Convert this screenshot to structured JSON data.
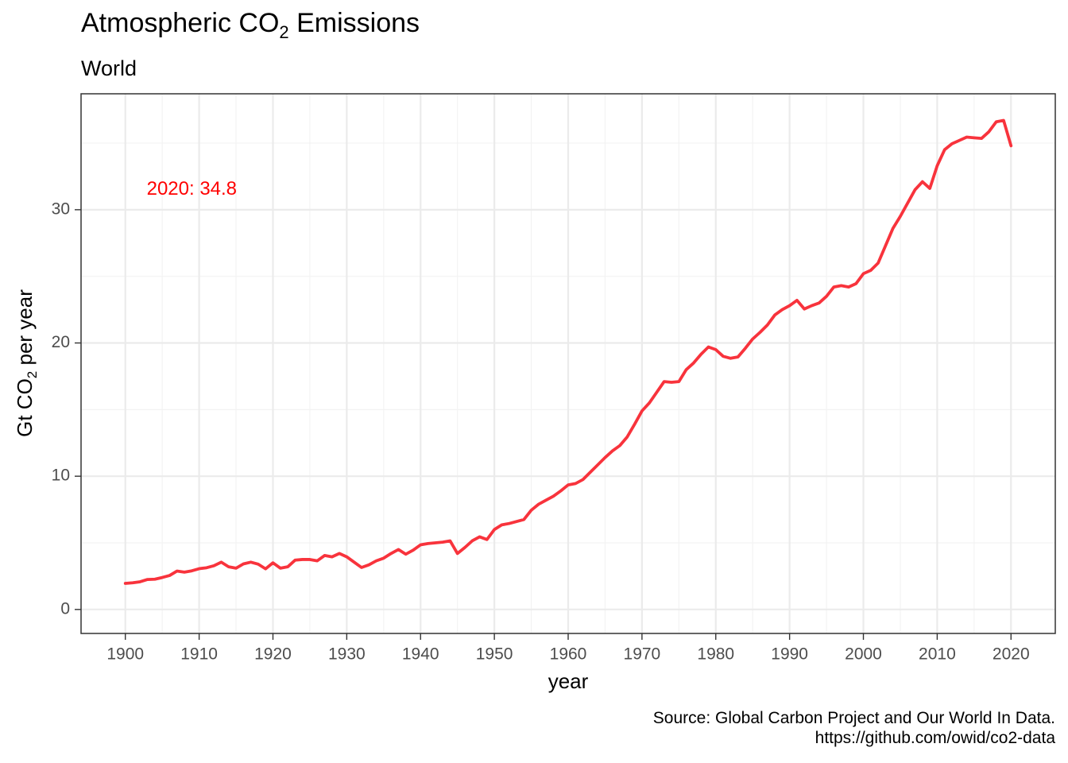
{
  "title": {
    "prefix": "Atmospheric CO",
    "subscript": "2",
    "suffix": " Emissions"
  },
  "subtitle": "World",
  "axes": {
    "x_title": "year",
    "y_title": {
      "prefix": "Gt CO",
      "subscript": "2",
      "suffix": " per year"
    }
  },
  "annotation": {
    "text": "2020: 34.8",
    "x": 1909,
    "y": 31.5,
    "color": "#ff0000"
  },
  "source": {
    "line1": "Source: Global Carbon Project and Our World In Data.",
    "line2": "https://github.com/owid/co2-data"
  },
  "colors": {
    "line": "#f8333c",
    "annotation": "#ff0000",
    "grid": "#ebebeb",
    "grid_minor": "#f3f3f3",
    "axis": "#333333",
    "tick_label": "#4d4d4d",
    "text": "#000000"
  },
  "chart_data": {
    "type": "line",
    "title": "Atmospheric CO2 Emissions",
    "subtitle": "World",
    "xlabel": "year",
    "ylabel": "Gt CO2 per year",
    "xlim": [
      1894,
      2026
    ],
    "ylim": [
      -1.8,
      38.7
    ],
    "grid": true,
    "xticks": [
      1900,
      1910,
      1920,
      1930,
      1940,
      1950,
      1960,
      1970,
      1980,
      1990,
      2000,
      2010,
      2020
    ],
    "yticks": [
      0,
      10,
      20,
      30
    ],
    "series": [
      {
        "name": "World",
        "x": [
          1900,
          1901,
          1902,
          1903,
          1904,
          1905,
          1906,
          1907,
          1908,
          1909,
          1910,
          1911,
          1912,
          1913,
          1914,
          1915,
          1916,
          1917,
          1918,
          1919,
          1920,
          1921,
          1922,
          1923,
          1924,
          1925,
          1926,
          1927,
          1928,
          1929,
          1930,
          1931,
          1932,
          1933,
          1934,
          1935,
          1936,
          1937,
          1938,
          1939,
          1940,
          1941,
          1942,
          1943,
          1944,
          1945,
          1946,
          1947,
          1948,
          1949,
          1950,
          1951,
          1952,
          1953,
          1954,
          1955,
          1956,
          1957,
          1958,
          1959,
          1960,
          1961,
          1962,
          1963,
          1964,
          1965,
          1966,
          1967,
          1968,
          1969,
          1970,
          1971,
          1972,
          1973,
          1974,
          1975,
          1976,
          1977,
          1978,
          1979,
          1980,
          1981,
          1982,
          1983,
          1984,
          1985,
          1986,
          1987,
          1988,
          1989,
          1990,
          1991,
          1992,
          1993,
          1994,
          1995,
          1996,
          1997,
          1998,
          1999,
          2000,
          2001,
          2002,
          2003,
          2004,
          2005,
          2006,
          2007,
          2008,
          2009,
          2010,
          2011,
          2012,
          2013,
          2014,
          2015,
          2016,
          2017,
          2018,
          2019,
          2020
        ],
        "values": [
          1.96,
          2.0,
          2.08,
          2.25,
          2.27,
          2.4,
          2.55,
          2.88,
          2.8,
          2.9,
          3.06,
          3.13,
          3.28,
          3.55,
          3.2,
          3.1,
          3.42,
          3.55,
          3.4,
          3.05,
          3.5,
          3.1,
          3.2,
          3.7,
          3.75,
          3.75,
          3.65,
          4.05,
          3.95,
          4.2,
          3.95,
          3.55,
          3.15,
          3.35,
          3.65,
          3.85,
          4.2,
          4.5,
          4.15,
          4.45,
          4.85,
          4.95,
          5.0,
          5.05,
          5.15,
          4.2,
          4.65,
          5.15,
          5.45,
          5.25,
          6.0,
          6.35,
          6.45,
          6.6,
          6.75,
          7.45,
          7.9,
          8.2,
          8.5,
          8.9,
          9.35,
          9.45,
          9.75,
          10.3,
          10.85,
          11.4,
          11.9,
          12.3,
          12.95,
          13.9,
          14.9,
          15.5,
          16.3,
          17.1,
          17.05,
          17.1,
          18.0,
          18.5,
          19.15,
          19.7,
          19.5,
          19.0,
          18.85,
          18.95,
          19.6,
          20.3,
          20.8,
          21.35,
          22.1,
          22.5,
          22.8,
          23.2,
          22.55,
          22.8,
          23.0,
          23.5,
          24.2,
          24.3,
          24.2,
          24.45,
          25.2,
          25.45,
          26.0,
          27.3,
          28.6,
          29.5,
          30.5,
          31.5,
          32.1,
          31.6,
          33.3,
          34.5,
          34.95,
          35.2,
          35.45,
          35.4,
          35.35,
          35.85,
          36.6,
          36.7,
          34.8
        ]
      }
    ]
  }
}
